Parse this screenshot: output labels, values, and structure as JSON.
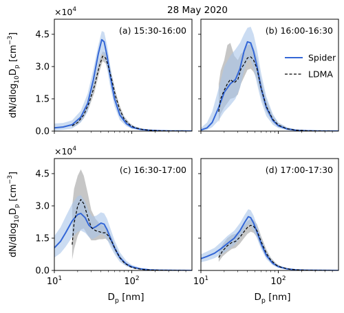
{
  "title": "28 May 2020",
  "colors": {
    "spider": "#3366d6",
    "spider_band": "#a9c4ea",
    "ldma": "#000000",
    "ldma_band": "#b3b3b3"
  },
  "legend": {
    "placement": "top-right of panel (b)",
    "spider": "Spider",
    "ldma": "LDMA"
  },
  "chart_data": [
    {
      "type": "line",
      "label": "(a) 15:30-16:00",
      "x_scale": "log",
      "xlim": [
        10,
        600
      ],
      "ylim": [
        0,
        52000
      ],
      "yticks": [
        0,
        15000,
        30000,
        45000
      ],
      "ytick_labels": [
        "0.0",
        "1.5",
        "3.0",
        "4.5"
      ],
      "y_multiplier": "×10^4",
      "ylabel": "dN/dlog10Dp [cm^-3]",
      "xlabel": "",
      "series": [
        {
          "name": "Spider",
          "x": [
            10,
            13,
            17,
            22,
            27,
            32,
            37,
            41,
            44,
            48,
            53,
            60,
            70,
            85,
            100,
            130,
            170,
            230,
            320,
            450,
            600
          ],
          "y": [
            1500,
            1900,
            3000,
            6500,
            13000,
            24000,
            36000,
            42500,
            41500,
            35000,
            25000,
            15000,
            7500,
            3500,
            1800,
            800,
            400,
            200,
            100,
            50,
            30
          ],
          "upper": [
            3500,
            3800,
            5000,
            9500,
            17500,
            29000,
            40000,
            46500,
            46000,
            40000,
            30000,
            19000,
            10000,
            5000,
            2800,
            1300,
            700,
            350,
            180,
            100,
            60
          ],
          "lower": [
            300,
            600,
            1200,
            4000,
            9000,
            19000,
            30000,
            36000,
            35000,
            29000,
            20000,
            11500,
            5200,
            2300,
            1100,
            450,
            200,
            90,
            40,
            20,
            10
          ]
        },
        {
          "name": "LDMA",
          "x": [
            17,
            20,
            24,
            28,
            33,
            38,
            42,
            46,
            50,
            55,
            62,
            70,
            80,
            95,
            110,
            140,
            180,
            240,
            320,
            420,
            500
          ],
          "y": [
            2500,
            4000,
            7500,
            13000,
            21000,
            30000,
            34800,
            34000,
            30000,
            24000,
            16000,
            10000,
            5500,
            2800,
            1600,
            700,
            350,
            170,
            80,
            40,
            20
          ],
          "upper": [
            3300,
            5200,
            9300,
            15500,
            24000,
            33000,
            37000,
            36500,
            32500,
            26500,
            18200,
            11800,
            6800,
            3600,
            2100,
            1000,
            520,
            260,
            130,
            70,
            40
          ],
          "lower": [
            1700,
            2900,
            5900,
            10800,
            18000,
            27000,
            32500,
            31500,
            27500,
            21500,
            14000,
            8300,
            4400,
            2100,
            1150,
            450,
            210,
            100,
            40,
            20,
            10
          ]
        }
      ]
    },
    {
      "type": "line",
      "label": "(b) 16:00-16:30",
      "x_scale": "log",
      "xlim": [
        10,
        600
      ],
      "ylim": [
        0,
        52000
      ],
      "xlabel": "",
      "ylabel": "",
      "series": [
        {
          "name": "Spider",
          "x": [
            10,
            12,
            14,
            17,
            20,
            24,
            28,
            32,
            36,
            40,
            44,
            48,
            53,
            60,
            70,
            85,
            100,
            130,
            170,
            230,
            320,
            450,
            600
          ],
          "y": [
            500,
            1500,
            4000,
            11000,
            18000,
            22000,
            24000,
            29000,
            37000,
            41500,
            41000,
            37000,
            30000,
            20000,
            11000,
            5000,
            2500,
            1000,
            400,
            180,
            80,
            40,
            20
          ],
          "upper": [
            1500,
            4000,
            9000,
            20000,
            30000,
            35000,
            38000,
            41000,
            45000,
            48000,
            48500,
            45000,
            38000,
            27000,
            16000,
            8000,
            4000,
            1800,
            800,
            380,
            180,
            90,
            40
          ],
          "lower": [
            100,
            600,
            1800,
            5000,
            9000,
            12000,
            15000,
            20000,
            28000,
            33000,
            33000,
            29000,
            22000,
            14000,
            7000,
            3000,
            1400,
            500,
            180,
            80,
            30,
            15,
            8
          ]
        },
        {
          "name": "LDMA",
          "x": [
            17,
            18,
            20,
            22,
            24,
            27,
            30,
            33,
            36,
            40,
            44,
            48,
            53,
            60,
            70,
            85,
            100,
            130,
            170,
            230,
            320,
            420,
            500
          ],
          "y": [
            9000,
            15000,
            19000,
            22000,
            24000,
            22500,
            24000,
            29000,
            31000,
            34000,
            34500,
            33000,
            29000,
            20000,
            11500,
            5500,
            2800,
            1100,
            450,
            200,
            90,
            40,
            20
          ],
          "upper": [
            22000,
            28000,
            33000,
            40000,
            41000,
            35000,
            33000,
            36000,
            37000,
            40000,
            40500,
            38500,
            34000,
            24000,
            14500,
            7200,
            3800,
            1600,
            700,
            320,
            150,
            70,
            40
          ],
          "lower": [
            4000,
            8000,
            11000,
            13000,
            15000,
            15500,
            17000,
            22000,
            25000,
            28500,
            29000,
            27500,
            24000,
            16000,
            9000,
            4200,
            2000,
            750,
            280,
            120,
            50,
            20,
            10
          ]
        }
      ]
    },
    {
      "type": "line",
      "label": "(c) 16:30-17:00",
      "x_scale": "log",
      "xlim": [
        10,
        600
      ],
      "ylim": [
        0,
        52000
      ],
      "yticks": [
        0,
        15000,
        30000,
        45000
      ],
      "ytick_labels": [
        "0.0",
        "1.5",
        "3.0",
        "4.5"
      ],
      "y_multiplier": "×10^4",
      "xticks": [
        10,
        100
      ],
      "ylabel": "dN/dlog10Dp [cm^-3]",
      "xlabel": "Dp [nm]",
      "series": [
        {
          "name": "Spider",
          "x": [
            10,
            12,
            14,
            17,
            20,
            22,
            25,
            28,
            31,
            35,
            40,
            44,
            48,
            53,
            60,
            70,
            85,
            100,
            130,
            170,
            230,
            320,
            450,
            600
          ],
          "y": [
            10500,
            13500,
            17500,
            23000,
            26000,
            26500,
            24500,
            21000,
            19500,
            20500,
            22000,
            21500,
            19000,
            15000,
            10500,
            6000,
            3000,
            1700,
            700,
            300,
            140,
            60,
            30,
            15
          ],
          "upper": [
            16000,
            20000,
            25000,
            31000,
            34500,
            35000,
            32000,
            27500,
            25000,
            25500,
            27000,
            26500,
            24000,
            19500,
            14000,
            8500,
            4500,
            2600,
            1200,
            550,
            250,
            110,
            55,
            30
          ],
          "lower": [
            6000,
            8000,
            11000,
            15500,
            18000,
            18500,
            17500,
            15500,
            14500,
            15500,
            17000,
            16500,
            14500,
            11000,
            7500,
            4000,
            1900,
            1000,
            380,
            150,
            65,
            25,
            12,
            6
          ]
        },
        {
          "name": "LDMA",
          "x": [
            17,
            18,
            20,
            22,
            24,
            27,
            30,
            34,
            38,
            42,
            46,
            50,
            55,
            62,
            70,
            80,
            95,
            110,
            140,
            180,
            240,
            320,
            420,
            500
          ],
          "y": [
            12000,
            22000,
            30000,
            33000,
            31000,
            25000,
            20000,
            18500,
            18000,
            17500,
            17500,
            16000,
            13500,
            9500,
            6000,
            3500,
            1800,
            1000,
            450,
            200,
            90,
            40,
            20,
            10
          ],
          "upper": [
            30000,
            38000,
            44000,
            47000,
            44000,
            36000,
            28000,
            24000,
            22000,
            21000,
            20500,
            18500,
            15500,
            11000,
            7200,
            4300,
            2300,
            1300,
            650,
            300,
            140,
            65,
            35,
            20
          ],
          "lower": [
            5000,
            10000,
            16000,
            19000,
            19500,
            16500,
            14000,
            14000,
            14500,
            14500,
            14800,
            13500,
            11500,
            8000,
            5000,
            2800,
            1400,
            750,
            320,
            130,
            55,
            25,
            10,
            5
          ]
        }
      ]
    },
    {
      "type": "line",
      "label": "(d) 17:00-17:30",
      "x_scale": "log",
      "xlim": [
        10,
        600
      ],
      "ylim": [
        0,
        52000
      ],
      "xticks": [
        10,
        100
      ],
      "xlabel": "Dp [nm]",
      "ylabel": "",
      "series": [
        {
          "name": "Spider",
          "x": [
            10,
            12,
            15,
            18,
            22,
            27,
            32,
            37,
            41,
            44,
            48,
            53,
            60,
            70,
            85,
            100,
            130,
            170,
            230,
            320,
            450,
            600
          ],
          "y": [
            5500,
            6500,
            8000,
            10000,
            12500,
            15000,
            18500,
            22500,
            25000,
            24500,
            22000,
            18000,
            12500,
            7000,
            3300,
            1800,
            700,
            300,
            130,
            60,
            25,
            10
          ],
          "upper": [
            7500,
            8800,
            10500,
            13000,
            16000,
            18500,
            22000,
            26000,
            28500,
            28000,
            25500,
            21000,
            15000,
            8800,
            4400,
            2500,
            1100,
            500,
            230,
            110,
            50,
            25
          ],
          "lower": [
            3800,
            4500,
            5700,
            7300,
            9300,
            11800,
            15000,
            19000,
            21500,
            21000,
            18500,
            15000,
            10000,
            5300,
            2400,
            1200,
            450,
            180,
            70,
            30,
            12,
            5
          ]
        },
        {
          "name": "LDMA",
          "x": [
            17,
            19,
            22,
            25,
            28,
            32,
            36,
            40,
            44,
            48,
            53,
            60,
            70,
            80,
            95,
            110,
            140,
            180,
            240,
            320,
            420,
            500
          ],
          "y": [
            6000,
            9000,
            11500,
            13000,
            13500,
            15500,
            18000,
            20000,
            21000,
            20500,
            18500,
            13500,
            8000,
            4800,
            2400,
            1400,
            600,
            250,
            110,
            50,
            25,
            10
          ],
          "upper": [
            8500,
            12000,
            15000,
            16500,
            17000,
            18500,
            21000,
            23000,
            24000,
            23500,
            21500,
            16000,
            9800,
            6000,
            3100,
            1850,
            850,
            380,
            170,
            80,
            40,
            20
          ],
          "lower": [
            4000,
            6500,
            8500,
            10000,
            10500,
            12500,
            15000,
            17000,
            18000,
            17500,
            15500,
            11000,
            6300,
            3700,
            1800,
            1000,
            400,
            160,
            65,
            30,
            12,
            5
          ]
        }
      ]
    }
  ]
}
